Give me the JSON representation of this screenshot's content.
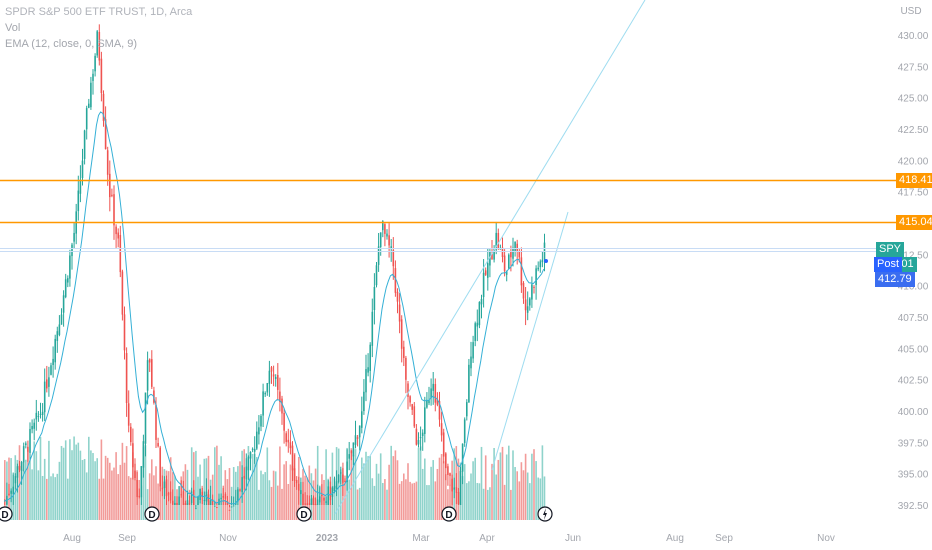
{
  "legend": {
    "symbol": "SPDR S&P 500 ETF TRUST, 1D, Arca",
    "vol": "Vol",
    "ema": "EMA (12, close, 0, SMA, 9)"
  },
  "price_axis": {
    "currency": "USD",
    "ticks": [
      "430.00",
      "427.50",
      "425.00",
      "422.50",
      "420.00",
      "417.50",
      "415.00",
      "412.50",
      "410.00",
      "407.50",
      "405.00",
      "402.50",
      "400.00",
      "397.50",
      "395.00",
      "392.50"
    ]
  },
  "time_axis": {
    "ticks": [
      "Aug",
      "Sep",
      "Nov",
      "2023",
      "Mar",
      "Apr",
      "Jun",
      "Aug",
      "Sep",
      "Nov"
    ]
  },
  "horizontal_levels": [
    {
      "value": 418.41,
      "label": "418.41",
      "color": "#ff9800"
    },
    {
      "value": 415.04,
      "label": "415.04",
      "color": "#ff9800"
    }
  ],
  "price_tags": [
    {
      "name": "SPY",
      "value": "413.01",
      "color": "#26a69a"
    },
    {
      "name": "Post",
      "value": "412.79",
      "color": "#2962ff"
    }
  ],
  "event_markers": [
    "D",
    "D",
    "D",
    "D",
    "lightning"
  ],
  "colors": {
    "up": "#26a69a",
    "down": "#ef5350",
    "ema": "#35b0d6",
    "trendline": "#9edcf0",
    "axis_text": "#a3a6ad"
  },
  "chart_data": {
    "type": "candlestick",
    "title": "SPDR S&P 500 ETF TRUST, 1D, Arca",
    "ylabel": "USD",
    "ylim": [
      392.5,
      431.5
    ],
    "y_ticks": [
      430,
      427.5,
      425,
      422.5,
      420,
      417.5,
      415,
      412.5,
      410,
      407.5,
      405,
      402.5,
      400,
      397.5,
      395,
      392.5
    ],
    "x_ticks": [
      "Aug",
      "Sep",
      "Nov",
      "2023",
      "Mar",
      "Apr",
      "Jun",
      "Aug",
      "Sep",
      "Nov"
    ],
    "series": [
      {
        "name": "SPDR S&P 500 ETF TRUST",
        "kind": "candles"
      },
      {
        "name": "Vol",
        "kind": "volume"
      },
      {
        "name": "EMA (12, close, 0, SMA, 9)",
        "kind": "line"
      }
    ],
    "levels": [
      418.41,
      415.04
    ],
    "last_price": 413.01,
    "post_price": 412.79
  }
}
